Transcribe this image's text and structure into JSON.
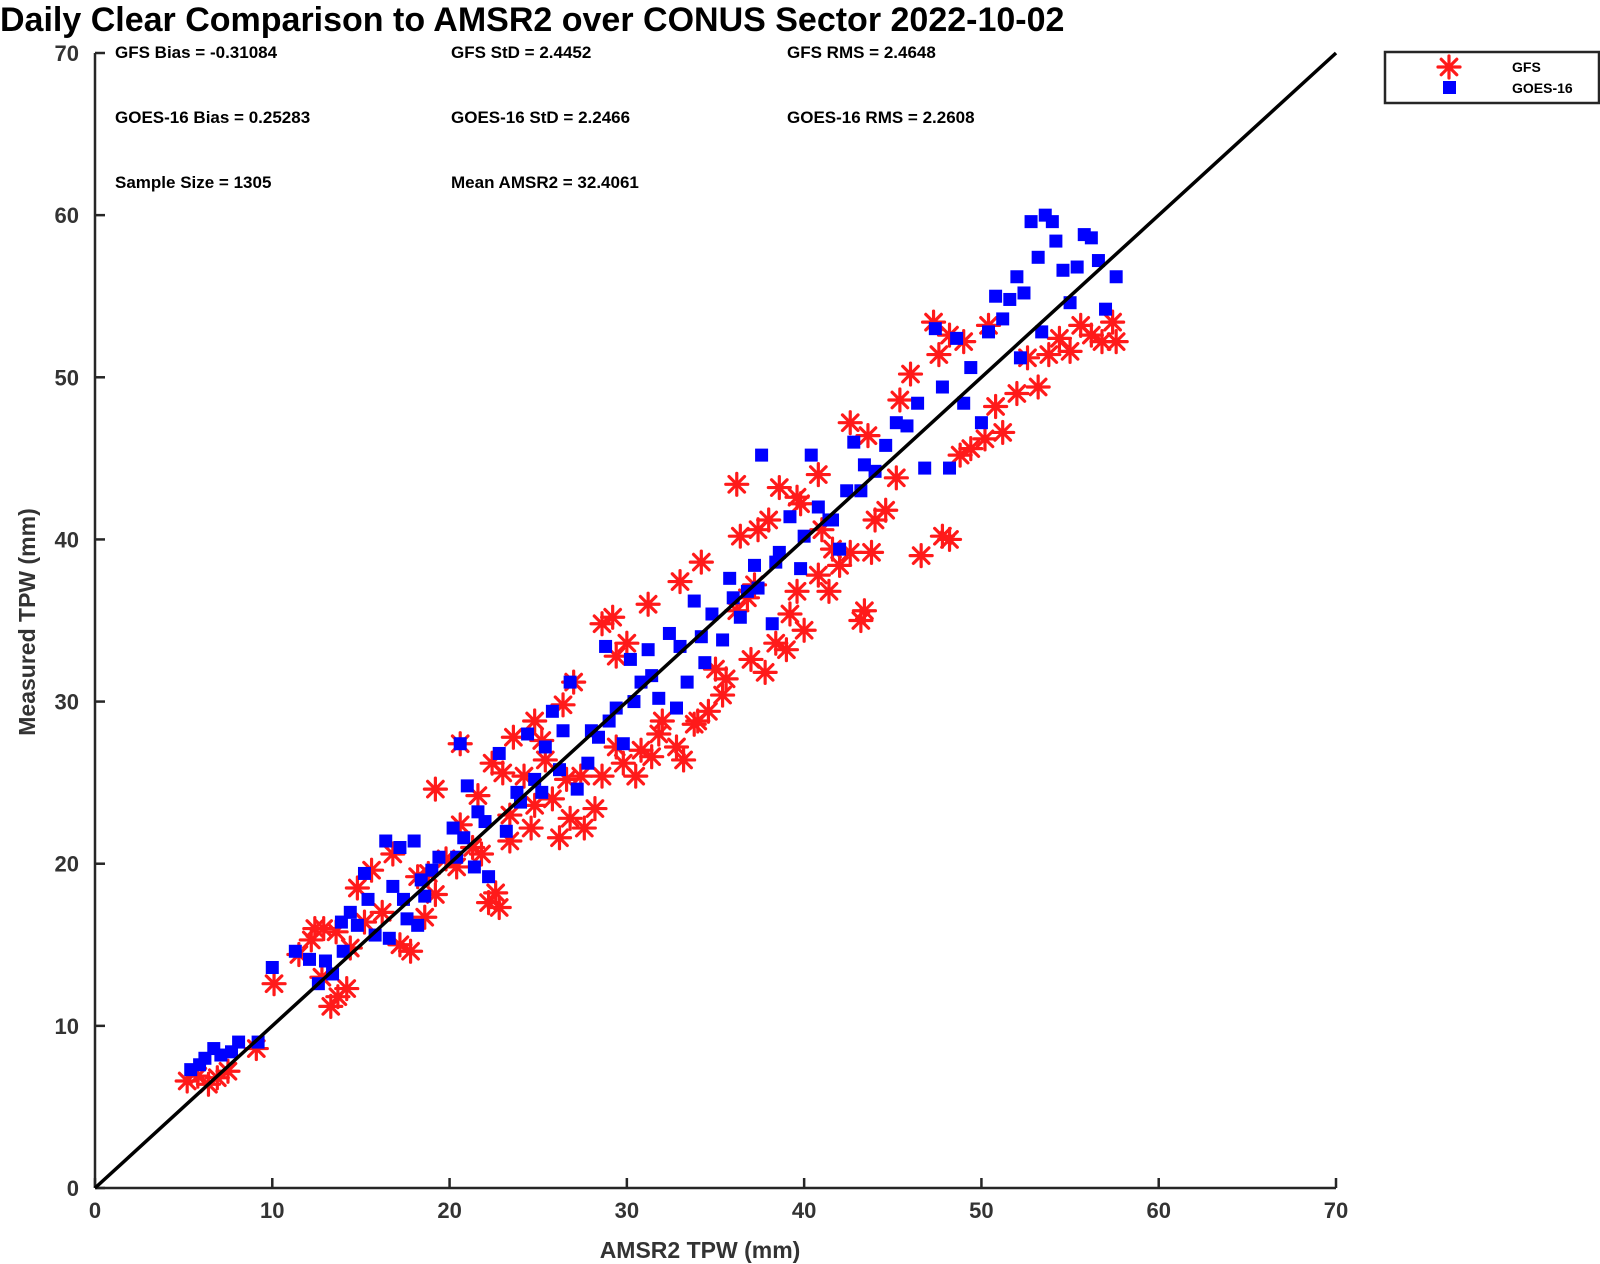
{
  "chart_data": {
    "type": "scatter",
    "title": "Daily Clear Comparison to AMSR2 over CONUS Sector 2022-10-02",
    "xlabel": "AMSR2 TPW (mm)",
    "ylabel": "Measured TPW (mm)",
    "xlim": [
      0,
      70
    ],
    "ylim": [
      0,
      70
    ],
    "xticks": [
      "0",
      "10",
      "20",
      "30",
      "40",
      "50",
      "60",
      "70"
    ],
    "yticks": [
      "0",
      "10",
      "20",
      "30",
      "40",
      "50",
      "60",
      "70"
    ],
    "grid": false,
    "legend_position": "outside-top-right",
    "reference_line": {
      "x": [
        0,
        70
      ],
      "y": [
        0,
        70
      ],
      "color": "#000000"
    },
    "stats": {
      "gfs_bias": "GFS Bias = -0.31084",
      "gfs_std": "GFS StD = 2.4452",
      "gfs_rms": "GFS RMS = 2.4648",
      "goes_bias": "GOES-16 Bias = 0.25283",
      "goes_std": "GOES-16 StD = 2.2466",
      "goes_rms": "GOES-16 RMS = 2.2608",
      "sample_size": "Sample Size = 1305",
      "mean_amsr2": "Mean AMSR2 = 32.4061"
    },
    "series": [
      {
        "name": "GFS",
        "marker": "asterisk",
        "color": "#ff1a1a",
        "points": [
          [
            5.2,
            6.6
          ],
          [
            5.8,
            6.9
          ],
          [
            6.4,
            6.4
          ],
          [
            6.9,
            6.8
          ],
          [
            7.5,
            7.2
          ],
          [
            9.1,
            8.6
          ],
          [
            10.1,
            12.6
          ],
          [
            11.5,
            14.4
          ],
          [
            12.2,
            15.3
          ],
          [
            12.9,
            16.0
          ],
          [
            13.3,
            11.2
          ],
          [
            13.7,
            11.8
          ],
          [
            14.2,
            12.3
          ],
          [
            12.8,
            13.0
          ],
          [
            14.8,
            18.5
          ],
          [
            15.6,
            19.6
          ],
          [
            16.8,
            20.6
          ],
          [
            17.2,
            15.0
          ],
          [
            17.8,
            14.6
          ],
          [
            18.6,
            16.7
          ],
          [
            19.2,
            18.1
          ],
          [
            19.8,
            20.3
          ],
          [
            20.6,
            22.4
          ],
          [
            21.3,
            21.0
          ],
          [
            22.2,
            17.6
          ],
          [
            22.8,
            17.3
          ],
          [
            22.6,
            18.2
          ],
          [
            23.4,
            23.0
          ],
          [
            24.2,
            25.4
          ],
          [
            24.8,
            23.6
          ],
          [
            25.4,
            26.4
          ],
          [
            25.8,
            24.0
          ],
          [
            26.2,
            21.6
          ],
          [
            26.8,
            22.8
          ],
          [
            27.6,
            22.2
          ],
          [
            28.2,
            23.4
          ],
          [
            28.6,
            25.4
          ],
          [
            29.4,
            27.2
          ],
          [
            29.8,
            26.2
          ],
          [
            30.5,
            25.4
          ],
          [
            31.4,
            26.6
          ],
          [
            32.0,
            28.8
          ],
          [
            32.8,
            27.2
          ],
          [
            33.2,
            26.4
          ],
          [
            34.0,
            28.8
          ],
          [
            34.6,
            29.4
          ],
          [
            35.0,
            32.0
          ],
          [
            35.6,
            31.4
          ],
          [
            36.2,
            35.6
          ],
          [
            36.8,
            36.4
          ],
          [
            37.2,
            37.2
          ],
          [
            37.8,
            31.8
          ],
          [
            38.4,
            33.6
          ],
          [
            39.0,
            33.2
          ],
          [
            39.6,
            36.8
          ],
          [
            40.0,
            34.4
          ],
          [
            40.8,
            37.8
          ],
          [
            41.4,
            36.8
          ],
          [
            42.0,
            38.4
          ],
          [
            42.6,
            39.2
          ],
          [
            43.4,
            35.6
          ],
          [
            43.2,
            35.0
          ],
          [
            43.8,
            39.2
          ],
          [
            44.6,
            41.8
          ],
          [
            45.2,
            43.8
          ],
          [
            45.4,
            48.6
          ],
          [
            46.0,
            50.2
          ],
          [
            46.6,
            39.0
          ],
          [
            47.8,
            40.2
          ],
          [
            48.2,
            40.0
          ],
          [
            48.8,
            45.2
          ],
          [
            49.4,
            45.6
          ],
          [
            50.2,
            46.2
          ],
          [
            50.8,
            48.2
          ],
          [
            51.2,
            46.6
          ],
          [
            52.0,
            49.0
          ],
          [
            52.6,
            51.2
          ],
          [
            53.2,
            49.4
          ],
          [
            53.8,
            51.4
          ],
          [
            54.4,
            52.4
          ],
          [
            55.0,
            51.6
          ],
          [
            55.6,
            53.2
          ],
          [
            56.2,
            52.6
          ],
          [
            56.8,
            52.2
          ],
          [
            57.4,
            53.4
          ],
          [
            57.6,
            52.2
          ],
          [
            47.3,
            53.4
          ],
          [
            47.6,
            51.4
          ],
          [
            48.2,
            52.6
          ],
          [
            49.0,
            52.2
          ],
          [
            50.4,
            53.2
          ],
          [
            31.2,
            36.0
          ],
          [
            29.2,
            35.2
          ],
          [
            28.6,
            34.8
          ],
          [
            29.4,
            32.8
          ],
          [
            30.0,
            33.6
          ],
          [
            33.0,
            37.4
          ],
          [
            34.2,
            38.6
          ],
          [
            36.4,
            40.2
          ],
          [
            37.4,
            40.6
          ],
          [
            38.0,
            41.2
          ],
          [
            39.6,
            42.6
          ],
          [
            40.8,
            44.0
          ],
          [
            42.6,
            47.2
          ],
          [
            43.6,
            46.4
          ],
          [
            36.2,
            43.4
          ],
          [
            38.6,
            43.2
          ],
          [
            39.8,
            42.2
          ],
          [
            41.0,
            40.6
          ],
          [
            41.6,
            39.4
          ],
          [
            44.0,
            41.2
          ],
          [
            20.6,
            27.4
          ],
          [
            22.4,
            26.2
          ],
          [
            23.6,
            27.8
          ],
          [
            25.2,
            27.6
          ],
          [
            27.0,
            31.2
          ],
          [
            26.4,
            29.8
          ],
          [
            24.8,
            28.8
          ],
          [
            19.2,
            24.6
          ],
          [
            21.6,
            24.2
          ],
          [
            23.0,
            25.6
          ],
          [
            15.2,
            16.4
          ],
          [
            14.4,
            14.8
          ],
          [
            16.2,
            17.0
          ],
          [
            13.6,
            15.8
          ],
          [
            12.4,
            16.0
          ],
          [
            18.2,
            19.2
          ],
          [
            18.8,
            19.4
          ],
          [
            20.4,
            19.8
          ],
          [
            21.8,
            20.6
          ],
          [
            23.4,
            21.4
          ],
          [
            24.6,
            22.2
          ],
          [
            26.6,
            25.2
          ],
          [
            27.4,
            25.4
          ],
          [
            30.8,
            27.0
          ],
          [
            31.8,
            28.0
          ],
          [
            33.8,
            28.6
          ],
          [
            35.4,
            30.4
          ],
          [
            37.0,
            32.6
          ],
          [
            39.2,
            35.4
          ]
        ]
      },
      {
        "name": "GOES-16",
        "marker": "square",
        "color": "#0000ff",
        "points": [
          [
            5.4,
            7.3
          ],
          [
            5.9,
            7.6
          ],
          [
            6.2,
            8.0
          ],
          [
            6.7,
            8.6
          ],
          [
            7.1,
            8.2
          ],
          [
            7.7,
            8.4
          ],
          [
            8.1,
            9.0
          ],
          [
            9.2,
            9.0
          ],
          [
            10.0,
            13.6
          ],
          [
            11.3,
            14.6
          ],
          [
            12.1,
            14.1
          ],
          [
            12.6,
            12.6
          ],
          [
            13.4,
            13.2
          ],
          [
            13.9,
            16.4
          ],
          [
            14.4,
            17.0
          ],
          [
            14.8,
            16.2
          ],
          [
            15.4,
            17.8
          ],
          [
            15.8,
            15.6
          ],
          [
            16.4,
            21.4
          ],
          [
            16.8,
            18.6
          ],
          [
            17.2,
            21.0
          ],
          [
            17.6,
            16.6
          ],
          [
            18.2,
            16.2
          ],
          [
            18.6,
            18.0
          ],
          [
            19.4,
            20.4
          ],
          [
            20.2,
            22.2
          ],
          [
            20.6,
            27.4
          ],
          [
            21.0,
            24.8
          ],
          [
            21.6,
            23.2
          ],
          [
            22.2,
            19.2
          ],
          [
            22.8,
            26.8
          ],
          [
            23.2,
            22.0
          ],
          [
            23.8,
            24.4
          ],
          [
            24.4,
            28.0
          ],
          [
            24.8,
            25.2
          ],
          [
            25.4,
            27.2
          ],
          [
            25.8,
            29.4
          ],
          [
            26.4,
            28.2
          ],
          [
            26.8,
            31.2
          ],
          [
            27.2,
            24.6
          ],
          [
            27.8,
            26.2
          ],
          [
            28.4,
            27.8
          ],
          [
            28.8,
            33.4
          ],
          [
            29.4,
            29.6
          ],
          [
            29.8,
            27.4
          ],
          [
            30.2,
            32.6
          ],
          [
            30.8,
            31.2
          ],
          [
            31.2,
            33.2
          ],
          [
            31.8,
            30.2
          ],
          [
            32.4,
            34.2
          ],
          [
            32.8,
            29.6
          ],
          [
            33.4,
            31.2
          ],
          [
            33.8,
            36.2
          ],
          [
            34.4,
            32.4
          ],
          [
            34.8,
            35.4
          ],
          [
            35.4,
            33.8
          ],
          [
            35.8,
            37.6
          ],
          [
            36.4,
            35.2
          ],
          [
            36.8,
            36.8
          ],
          [
            37.2,
            38.4
          ],
          [
            37.6,
            45.2
          ],
          [
            38.2,
            34.8
          ],
          [
            38.6,
            39.2
          ],
          [
            39.2,
            41.4
          ],
          [
            39.8,
            38.2
          ],
          [
            40.4,
            45.2
          ],
          [
            40.8,
            42.0
          ],
          [
            41.4,
            41.2
          ],
          [
            42.0,
            39.4
          ],
          [
            42.4,
            43.0
          ],
          [
            42.8,
            46.0
          ],
          [
            43.4,
            44.6
          ],
          [
            44.0,
            44.2
          ],
          [
            44.6,
            45.8
          ],
          [
            45.2,
            47.2
          ],
          [
            45.8,
            47.0
          ],
          [
            46.4,
            48.4
          ],
          [
            46.8,
            44.4
          ],
          [
            47.4,
            53.0
          ],
          [
            47.8,
            49.4
          ],
          [
            48.2,
            44.4
          ],
          [
            48.6,
            52.4
          ],
          [
            49.0,
            48.4
          ],
          [
            49.4,
            50.6
          ],
          [
            50.0,
            47.2
          ],
          [
            50.4,
            52.8
          ],
          [
            50.8,
            55.0
          ],
          [
            51.2,
            53.6
          ],
          [
            51.6,
            54.8
          ],
          [
            52.0,
            56.2
          ],
          [
            52.4,
            55.2
          ],
          [
            52.8,
            59.6
          ],
          [
            53.2,
            57.4
          ],
          [
            53.6,
            60.0
          ],
          [
            54.0,
            59.6
          ],
          [
            54.2,
            58.4
          ],
          [
            54.6,
            56.6
          ],
          [
            55.0,
            54.6
          ],
          [
            55.4,
            56.8
          ],
          [
            55.8,
            58.8
          ],
          [
            56.2,
            58.6
          ],
          [
            56.6,
            57.2
          ],
          [
            57.0,
            54.2
          ],
          [
            57.6,
            56.2
          ],
          [
            52.2,
            51.2
          ],
          [
            53.4,
            52.8
          ],
          [
            20.4,
            20.4
          ],
          [
            20.8,
            21.6
          ],
          [
            21.4,
            19.8
          ],
          [
            22.0,
            22.6
          ],
          [
            24.0,
            23.8
          ],
          [
            25.2,
            24.4
          ],
          [
            26.2,
            25.8
          ],
          [
            28.0,
            28.2
          ],
          [
            29.0,
            28.8
          ],
          [
            30.4,
            30.0
          ],
          [
            31.4,
            31.6
          ],
          [
            33.0,
            33.4
          ],
          [
            34.2,
            34.0
          ],
          [
            36.0,
            36.4
          ],
          [
            37.4,
            37.0
          ],
          [
            38.4,
            38.6
          ],
          [
            40.0,
            40.2
          ],
          [
            41.6,
            41.2
          ],
          [
            43.2,
            43.0
          ],
          [
            16.6,
            15.4
          ],
          [
            17.4,
            17.8
          ],
          [
            18.4,
            19.0
          ],
          [
            19.0,
            19.6
          ],
          [
            14.0,
            14.6
          ],
          [
            13.0,
            14.0
          ],
          [
            15.2,
            19.4
          ],
          [
            18.0,
            21.4
          ]
        ]
      }
    ]
  }
}
